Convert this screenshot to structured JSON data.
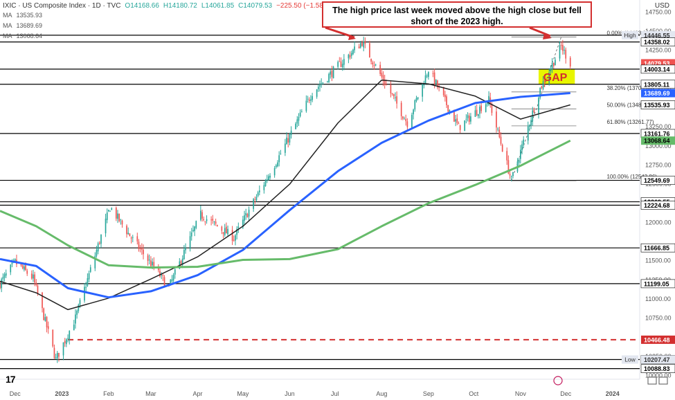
{
  "header": {
    "symbol": "IXIC · US Composite Index · 1D · TVC",
    "open": "O14168.66",
    "high": "H14180.72",
    "low": "L14061.85",
    "close": "C14079.53",
    "change": "−225.50 (−1.58%)",
    "currency": "USD"
  },
  "ma_legend": [
    {
      "label": "MA",
      "value": "13535.93",
      "color": "#222222"
    },
    {
      "label": "MA",
      "value": "13689.69",
      "color": "#2962ff"
    },
    {
      "label": "MA",
      "value": "13068.64",
      "color": "#4caf50"
    }
  ],
  "callout": "The high price last week moved above the high close but fell short of the 2023 high.",
  "gap_label": "GAP",
  "colors": {
    "up": "#26a69a",
    "down": "#ef5350",
    "ma50": "#222222",
    "ma100": "#2962ff",
    "ma200": "#66bb6a",
    "gap": "#e8f500",
    "red": "#d32f2f"
  },
  "chart_data": {
    "type": "candlestick",
    "y_axis": {
      "min": 9950,
      "max": 14780,
      "ticks": [
        10000,
        10250,
        10750,
        11000,
        11250,
        11500,
        12000,
        12500,
        12750,
        13000,
        13250,
        13750,
        14000,
        14250,
        14500,
        14750
      ],
      "tick_labels": [
        "10000.00",
        "10250.00",
        "10750.00",
        "11000.00",
        "11250.00",
        "11500.00",
        "12000.00",
        "12500.00",
        "12750.00",
        "13000.00",
        "13250.00",
        "13750.00",
        "14000.00",
        "14250.00",
        "14500.00",
        "14750.00"
      ]
    },
    "x_axis": {
      "labels": [
        "Dec",
        "2023",
        "Feb",
        "Mar",
        "Apr",
        "May",
        "Jun",
        "Jul",
        "Aug",
        "Sep",
        "Oct",
        "Nov",
        "Dec",
        "2024"
      ],
      "start": "2022-11-21",
      "end": "2024-01-19"
    },
    "price_anchors": [
      [
        "2022-11-21",
        11200
      ],
      [
        "2022-12-01",
        11480
      ],
      [
        "2022-12-13",
        11270
      ],
      [
        "2022-12-28",
        10207
      ],
      [
        "2023-01-10",
        10750
      ],
      [
        "2023-02-02",
        12200
      ],
      [
        "2023-02-16",
        11800
      ],
      [
        "2023-03-13",
        11150
      ],
      [
        "2023-04-03",
        12100
      ],
      [
        "2023-04-25",
        11800
      ],
      [
        "2023-05-26",
        12900
      ],
      [
        "2023-06-16",
        13700
      ],
      [
        "2023-07-19",
        14358
      ],
      [
        "2023-08-18",
        13300
      ],
      [
        "2023-09-01",
        14000
      ],
      [
        "2023-09-21",
        13240
      ],
      [
        "2023-10-11",
        13600
      ],
      [
        "2023-10-26",
        12550
      ],
      [
        "2023-11-14",
        13750
      ],
      [
        "2023-11-28",
        14300
      ],
      [
        "2023-12-04",
        14079.53
      ]
    ],
    "series": [
      {
        "name": "MA",
        "color": "#222222",
        "points": [
          [
            "2022-11-21",
            11230
          ],
          [
            "2022-12-15",
            11080
          ],
          [
            "2023-01-05",
            10860
          ],
          [
            "2023-02-01",
            11010
          ],
          [
            "2023-03-01",
            11260
          ],
          [
            "2023-04-01",
            11550
          ],
          [
            "2023-05-01",
            11950
          ],
          [
            "2023-06-01",
            12500
          ],
          [
            "2023-07-03",
            13300
          ],
          [
            "2023-08-01",
            13860
          ],
          [
            "2023-09-01",
            13810
          ],
          [
            "2023-10-02",
            13650
          ],
          [
            "2023-11-01",
            13350
          ],
          [
            "2023-12-04",
            13535.93
          ]
        ]
      },
      {
        "name": "MA",
        "color": "#2962ff",
        "points": [
          [
            "2022-11-21",
            11520
          ],
          [
            "2022-12-15",
            11430
          ],
          [
            "2023-01-05",
            11140
          ],
          [
            "2023-02-01",
            11020
          ],
          [
            "2023-03-01",
            11100
          ],
          [
            "2023-04-01",
            11310
          ],
          [
            "2023-05-01",
            11640
          ],
          [
            "2023-06-01",
            12160
          ],
          [
            "2023-07-03",
            12670
          ],
          [
            "2023-08-01",
            13040
          ],
          [
            "2023-09-01",
            13330
          ],
          [
            "2023-10-02",
            13560
          ],
          [
            "2023-11-01",
            13640
          ],
          [
            "2023-12-04",
            13689.69
          ]
        ]
      },
      {
        "name": "MA",
        "color": "#66bb6a",
        "points": [
          [
            "2022-11-21",
            12150
          ],
          [
            "2022-12-15",
            11950
          ],
          [
            "2023-01-05",
            11700
          ],
          [
            "2023-02-01",
            11440
          ],
          [
            "2023-03-01",
            11410
          ],
          [
            "2023-04-01",
            11420
          ],
          [
            "2023-05-01",
            11510
          ],
          [
            "2023-06-01",
            11520
          ],
          [
            "2023-07-03",
            11650
          ],
          [
            "2023-08-01",
            11950
          ],
          [
            "2023-09-01",
            12250
          ],
          [
            "2023-10-02",
            12490
          ],
          [
            "2023-11-01",
            12740
          ],
          [
            "2023-12-04",
            13068.64
          ]
        ]
      }
    ],
    "horizontal_levels": [
      14446.55,
      14358.02,
      14003.14,
      13805.11,
      13161.76,
      12549.69,
      12269.55,
      12224.68,
      11666.85,
      11199.05,
      10207.47,
      10088.83
    ],
    "dashed_level": 10466.48,
    "gap_zone": [
      13805.11,
      14003.14
    ],
    "fibonacci": [
      {
        "label": "0.00% (14423.22)",
        "value": 14423.22
      },
      {
        "label": "38.20% (13705.30)",
        "value": 13705.3
      },
      {
        "label": "50.00% (13483.54)",
        "value": 13483.54
      },
      {
        "label": "61.80% (13261.77)",
        "value": 13261.77
      },
      {
        "label": "100.00% (12543.86)",
        "value": 12543.86
      }
    ],
    "price_tags": [
      {
        "label": "High",
        "value": "14446.55",
        "price": 14446.55,
        "bg": "#e3e7f0",
        "fg": "#333333",
        "tag": "High"
      },
      {
        "value": "14358.02",
        "price": 14358.02,
        "bg": "#ffffff",
        "fg": "#000000"
      },
      {
        "value": "14079.53",
        "price": 14079.53,
        "bg": "#ef5350",
        "fg": "#ffffff"
      },
      {
        "value": "14003.14",
        "price": 14003.14,
        "bg": "#ffffff",
        "fg": "#000000"
      },
      {
        "value": "13805.11",
        "price": 13805.11,
        "bg": "#ffffff",
        "fg": "#000000"
      },
      {
        "value": "13689.69",
        "price": 13689.69,
        "bg": "#2962ff",
        "fg": "#ffffff"
      },
      {
        "value": "13535.93",
        "price": 13535.93,
        "bg": "#ffffff",
        "fg": "#000000"
      },
      {
        "value": "13161.76",
        "price": 13161.76,
        "bg": "#ffffff",
        "fg": "#000000"
      },
      {
        "value": "13068.64",
        "price": 13068.64,
        "bg": "#66bb6a",
        "fg": "#000000"
      },
      {
        "value": "12549.69",
        "price": 12549.69,
        "bg": "#ffffff",
        "fg": "#000000"
      },
      {
        "value": "12269.55",
        "price": 12269.55,
        "bg": "#ffffff",
        "fg": "#000000"
      },
      {
        "value": "12224.68",
        "price": 12224.68,
        "bg": "#ffffff",
        "fg": "#000000"
      },
      {
        "value": "11666.85",
        "price": 11666.85,
        "bg": "#ffffff",
        "fg": "#000000"
      },
      {
        "value": "11199.05",
        "price": 11199.05,
        "bg": "#ffffff",
        "fg": "#000000"
      },
      {
        "value": "10466.48",
        "price": 10466.48,
        "bg": "#d32f2f",
        "fg": "#ffffff"
      },
      {
        "value": "10207.47",
        "price": 10207.47,
        "bg": "#ffffff",
        "fg": "#000000"
      },
      {
        "label": "Low",
        "value": "10207.47",
        "price": 10207.47,
        "bg": "#e3e7f0",
        "fg": "#333333",
        "tag": "Low"
      },
      {
        "value": "10088.83",
        "price": 10088.83,
        "bg": "#ffffff",
        "fg": "#000000"
      }
    ]
  }
}
